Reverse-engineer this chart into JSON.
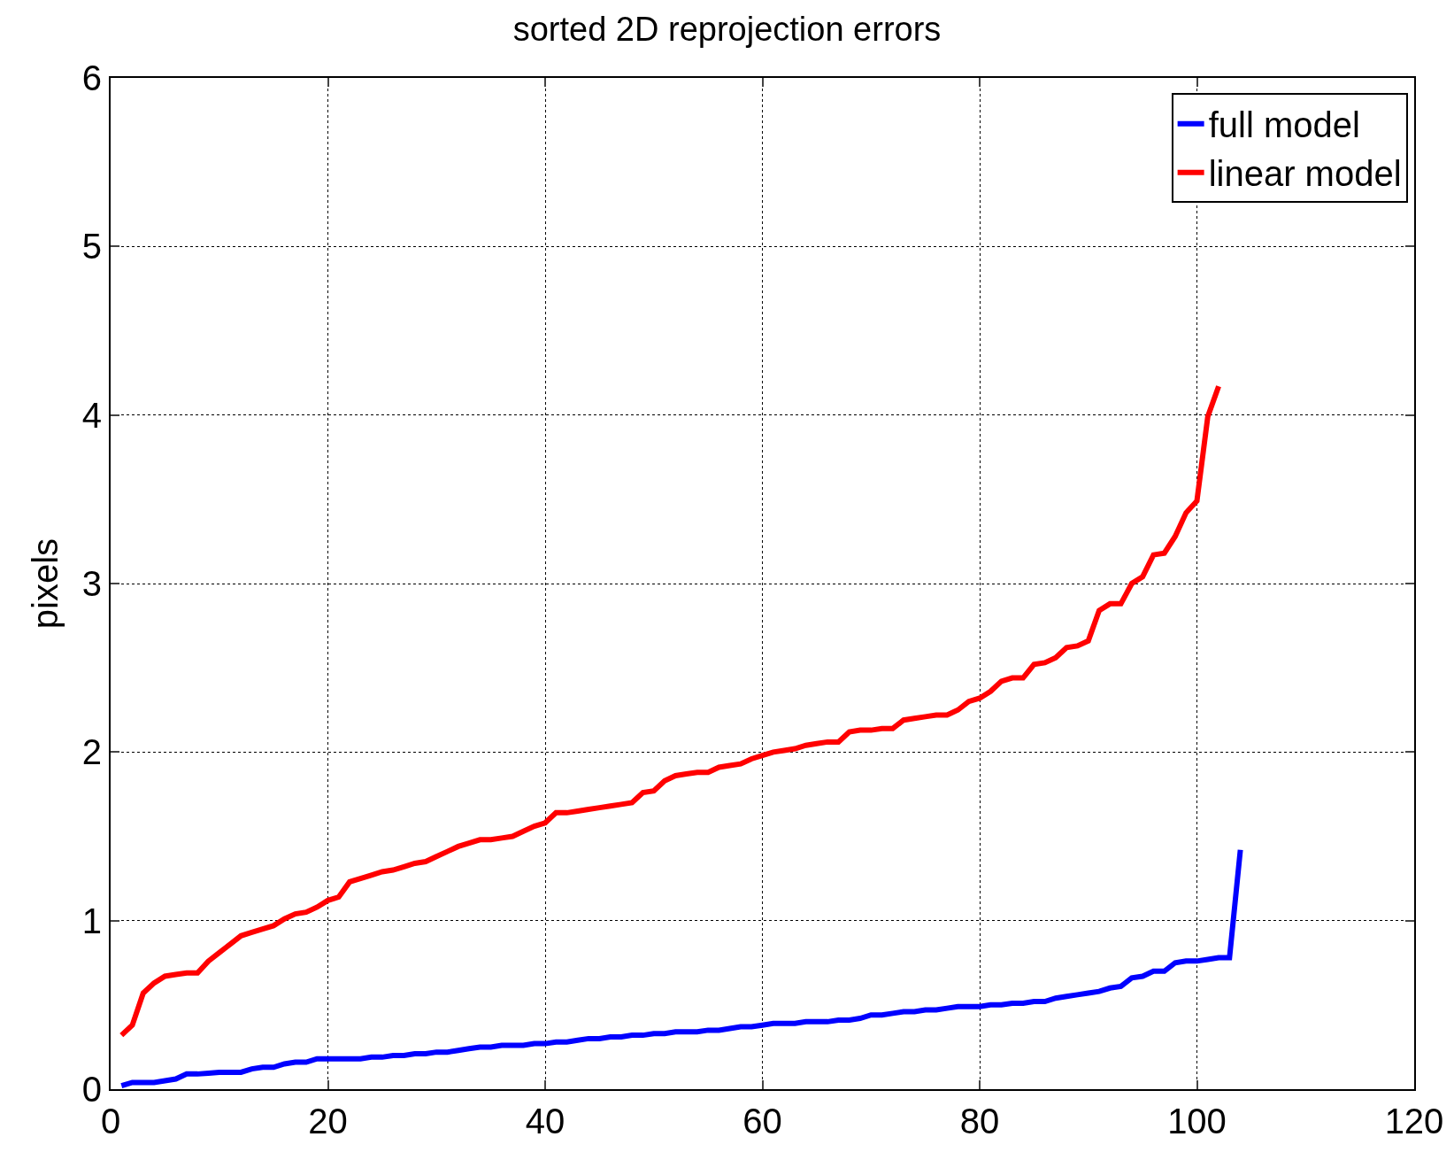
{
  "chart_data": {
    "type": "line",
    "title": "sorted 2D reprojection errors",
    "ylabel": "pixels",
    "xlim": [
      0,
      120
    ],
    "xticks": [
      0,
      20,
      40,
      60,
      80,
      100,
      120
    ],
    "ylim": [
      0,
      6
    ],
    "yticks": [
      0,
      1,
      2,
      3,
      4,
      5,
      6
    ],
    "grid": true,
    "legend": "top right",
    "line_style": "solid",
    "marker": "none",
    "series": [
      {
        "name": "full model",
        "color": "#0000ff",
        "x": [
          1,
          2,
          3,
          4,
          5,
          6,
          7,
          8,
          9,
          10,
          11,
          12,
          13,
          14,
          15,
          16,
          17,
          18,
          19,
          20,
          21,
          22,
          23,
          24,
          25,
          26,
          27,
          28,
          29,
          30,
          31,
          32,
          33,
          34,
          35,
          36,
          37,
          38,
          39,
          40,
          41,
          42,
          43,
          44,
          45,
          46,
          47,
          48,
          49,
          50,
          51,
          52,
          53,
          54,
          55,
          56,
          57,
          58,
          59,
          60,
          61,
          62,
          63,
          64,
          65,
          66,
          67,
          68,
          69,
          70,
          71,
          72,
          73,
          74,
          75,
          76,
          77,
          78,
          79,
          80,
          81,
          82,
          83,
          84,
          85,
          86,
          87,
          88,
          89,
          90,
          91,
          92,
          93,
          94,
          95,
          96,
          97,
          98,
          99,
          100,
          101,
          102,
          103,
          104
        ],
        "values": [
          0.02,
          0.04,
          0.04,
          0.04,
          0.05,
          0.06,
          0.09,
          0.09,
          0.095,
          0.1,
          0.1,
          0.1,
          0.12,
          0.13,
          0.13,
          0.15,
          0.16,
          0.16,
          0.18,
          0.18,
          0.18,
          0.18,
          0.18,
          0.19,
          0.19,
          0.2,
          0.2,
          0.21,
          0.21,
          0.22,
          0.22,
          0.23,
          0.24,
          0.25,
          0.25,
          0.26,
          0.26,
          0.26,
          0.27,
          0.27,
          0.28,
          0.28,
          0.29,
          0.3,
          0.3,
          0.31,
          0.31,
          0.32,
          0.32,
          0.33,
          0.33,
          0.34,
          0.34,
          0.34,
          0.35,
          0.35,
          0.36,
          0.37,
          0.37,
          0.38,
          0.39,
          0.39,
          0.39,
          0.4,
          0.4,
          0.4,
          0.41,
          0.41,
          0.42,
          0.44,
          0.44,
          0.45,
          0.46,
          0.46,
          0.47,
          0.47,
          0.48,
          0.49,
          0.49,
          0.49,
          0.5,
          0.5,
          0.51,
          0.51,
          0.52,
          0.52,
          0.54,
          0.55,
          0.56,
          0.57,
          0.58,
          0.6,
          0.61,
          0.66,
          0.67,
          0.7,
          0.7,
          0.75,
          0.76,
          0.76,
          0.77,
          0.78,
          0.78,
          1.42
        ]
      },
      {
        "name": "linear model",
        "color": "#ff0000",
        "x": [
          1,
          2,
          3,
          4,
          5,
          6,
          7,
          8,
          9,
          10,
          11,
          12,
          13,
          14,
          15,
          16,
          17,
          18,
          19,
          20,
          21,
          22,
          23,
          24,
          25,
          26,
          27,
          28,
          29,
          30,
          31,
          32,
          33,
          34,
          35,
          36,
          37,
          38,
          39,
          40,
          41,
          42,
          43,
          44,
          45,
          46,
          47,
          48,
          49,
          50,
          51,
          52,
          53,
          54,
          55,
          56,
          57,
          58,
          59,
          60,
          61,
          62,
          63,
          64,
          65,
          66,
          67,
          68,
          69,
          70,
          71,
          72,
          73,
          74,
          75,
          76,
          77,
          78,
          79,
          80,
          81,
          82,
          83,
          84,
          85,
          86,
          87,
          88,
          89,
          90,
          91,
          92,
          93,
          94,
          95,
          96,
          97,
          98,
          99,
          100,
          101,
          102
        ],
        "values": [
          0.32,
          0.38,
          0.57,
          0.63,
          0.67,
          0.68,
          0.69,
          0.69,
          0.76,
          0.81,
          0.86,
          0.91,
          0.93,
          0.95,
          0.97,
          1.01,
          1.04,
          1.05,
          1.08,
          1.12,
          1.14,
          1.23,
          1.25,
          1.27,
          1.29,
          1.3,
          1.32,
          1.34,
          1.35,
          1.38,
          1.41,
          1.44,
          1.46,
          1.48,
          1.48,
          1.49,
          1.5,
          1.53,
          1.56,
          1.58,
          1.64,
          1.64,
          1.65,
          1.66,
          1.67,
          1.68,
          1.69,
          1.7,
          1.76,
          1.77,
          1.83,
          1.86,
          1.87,
          1.88,
          1.88,
          1.91,
          1.92,
          1.93,
          1.96,
          1.98,
          2.0,
          2.01,
          2.02,
          2.04,
          2.05,
          2.06,
          2.06,
          2.12,
          2.13,
          2.13,
          2.14,
          2.14,
          2.19,
          2.2,
          2.21,
          2.22,
          2.22,
          2.25,
          2.3,
          2.32,
          2.36,
          2.42,
          2.44,
          2.44,
          2.52,
          2.53,
          2.56,
          2.62,
          2.63,
          2.66,
          2.84,
          2.88,
          2.88,
          3.0,
          3.04,
          3.17,
          3.18,
          3.28,
          3.42,
          3.49,
          3.99,
          4.17
        ]
      }
    ]
  }
}
